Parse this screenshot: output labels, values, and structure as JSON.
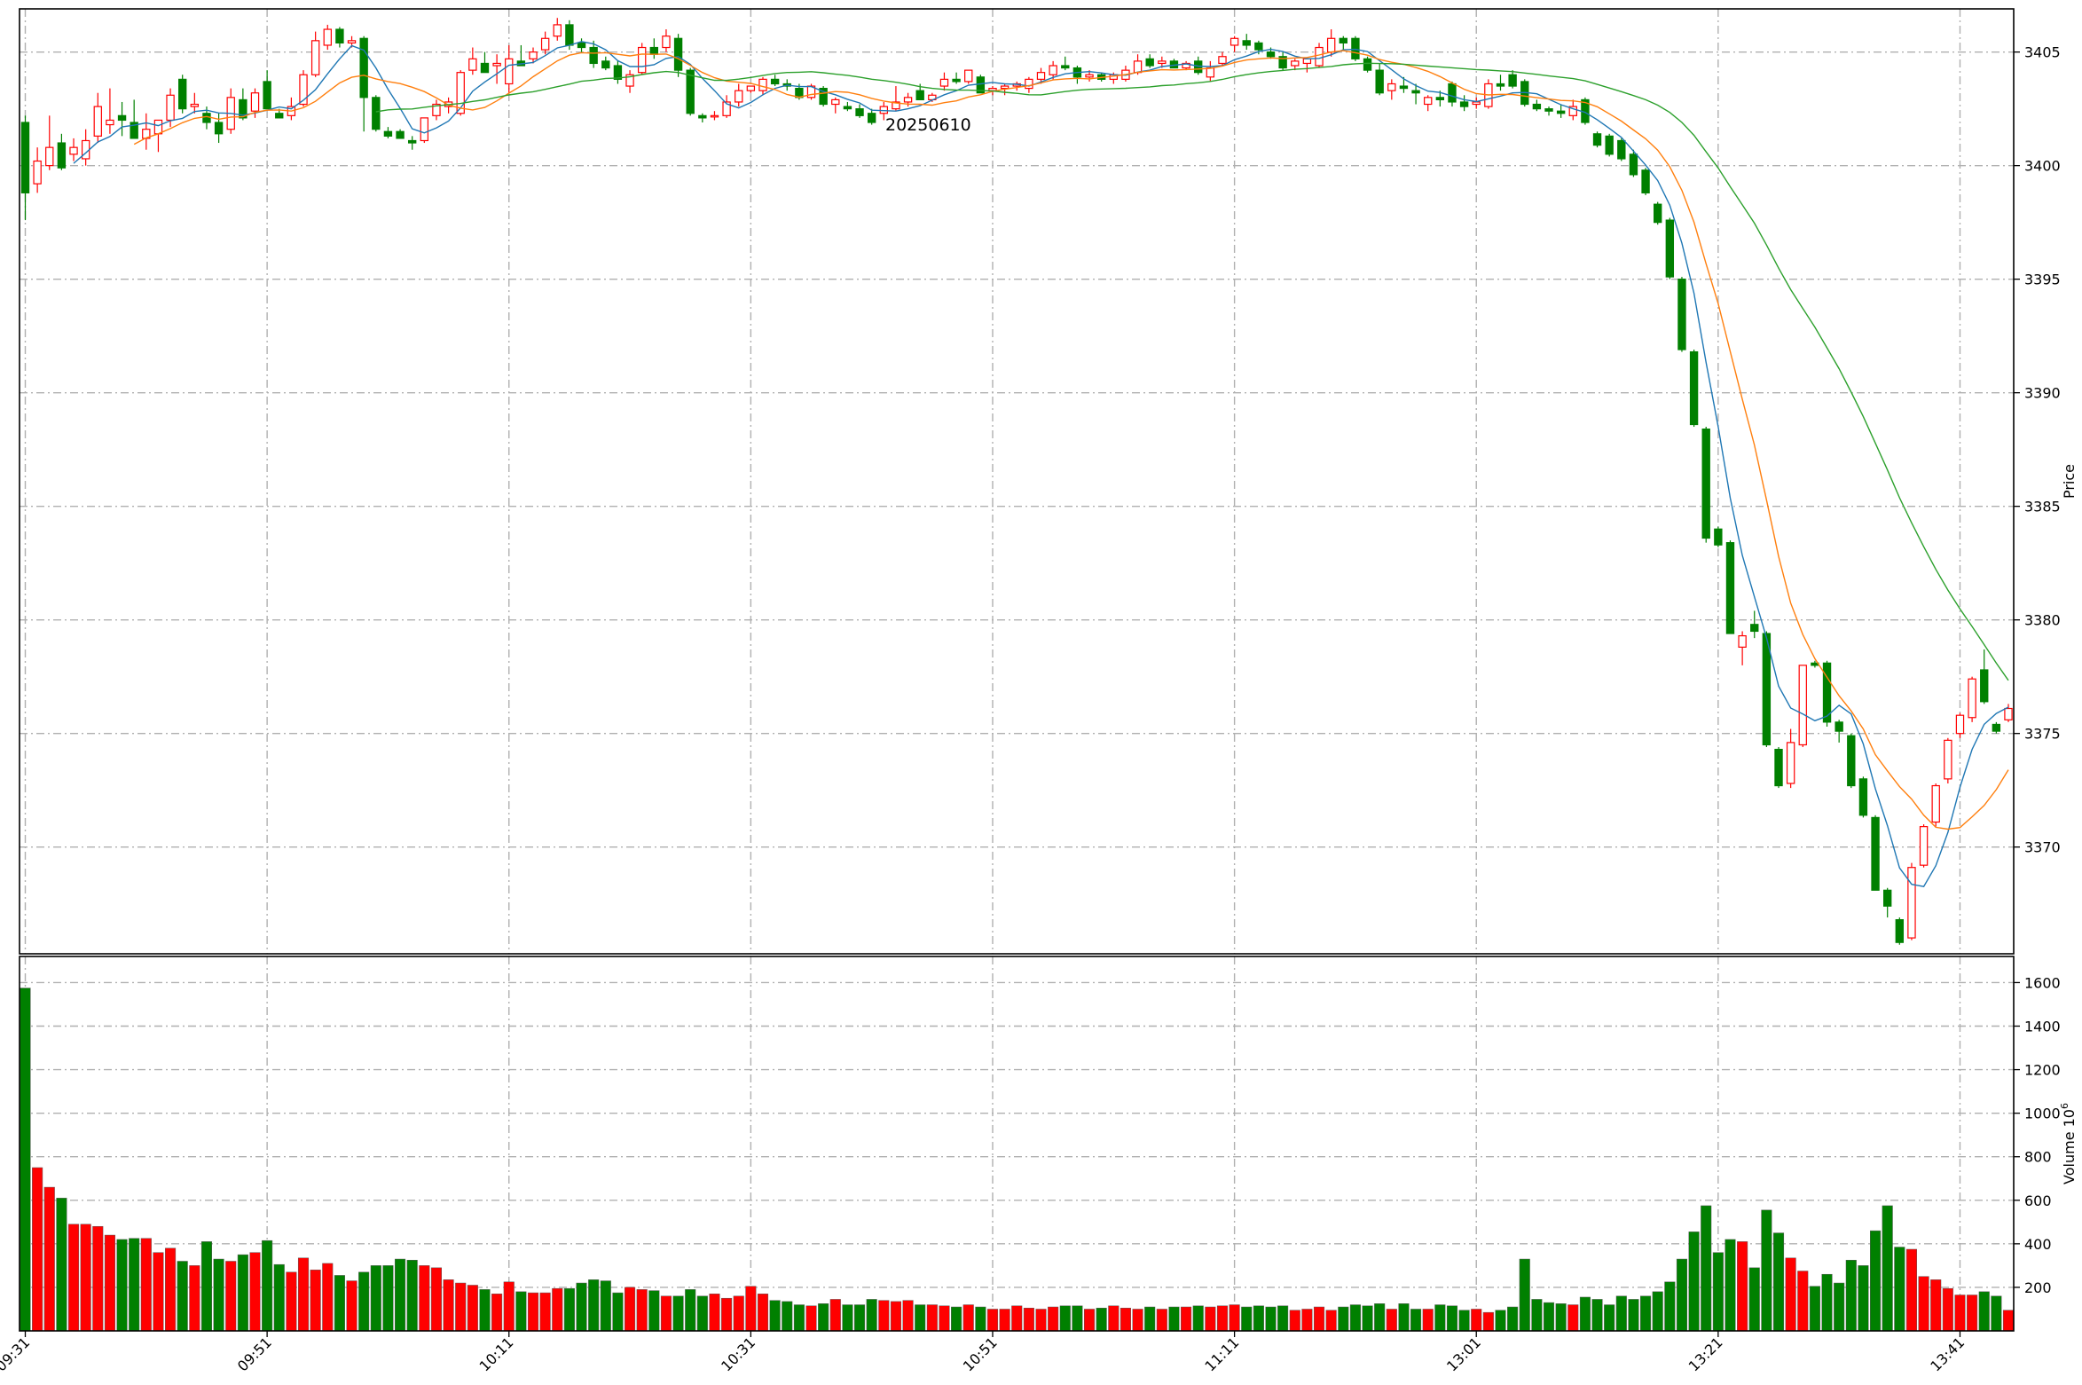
{
  "chart_data": {
    "type": "candlestick",
    "annotation": "20250610",
    "x_tick_labels": [
      "09:31",
      "09:51",
      "10:11",
      "10:31",
      "10:51",
      "11:11",
      "13:01",
      "13:21",
      "13:41"
    ],
    "x_tick_bar_index": [
      0,
      20,
      40,
      60,
      80,
      100,
      120,
      140,
      160
    ],
    "price_panel": {
      "ylabel": "Price",
      "yticks": [
        3370,
        3375,
        3380,
        3385,
        3390,
        3395,
        3400,
        3405
      ],
      "ylim": [
        3365.3,
        3406.9
      ],
      "grid": true,
      "tick_side": "right"
    },
    "volume_panel": {
      "ylabel": "Volume  10",
      "ylabel_exponent": "6",
      "yticks": [
        200,
        400,
        600,
        800,
        1000,
        1200,
        1400,
        1600
      ],
      "ylim": [
        0,
        1720
      ],
      "grid": true,
      "tick_side": "right"
    },
    "colors": {
      "up": "#ff0000",
      "down": "#008000",
      "ma_fast": "#1f77b4",
      "ma_mid": "#ff7f0e",
      "ma_slow": "#2ca02c",
      "grid": "#b0b0b0"
    },
    "ohlc_notes": "per-minute bars: open, high, low, close",
    "ohlc": [
      [
        3401.9,
        3402.2,
        3397.6,
        3398.8
      ],
      [
        3399.2,
        3400.8,
        3398.8,
        3400.2
      ],
      [
        3400.0,
        3402.2,
        3399.8,
        3400.8
      ],
      [
        3401.0,
        3401.4,
        3399.8,
        3399.9
      ],
      [
        3400.5,
        3401.2,
        3400.2,
        3400.8
      ],
      [
        3400.3,
        3401.6,
        3400.0,
        3401.1
      ],
      [
        3401.3,
        3403.2,
        3401.0,
        3402.6
      ],
      [
        3401.8,
        3403.4,
        3401.4,
        3402.0
      ],
      [
        3402.2,
        3402.8,
        3401.3,
        3402.0
      ],
      [
        3401.9,
        3402.9,
        3401.3,
        3401.2
      ],
      [
        3401.2,
        3402.3,
        3400.7,
        3401.6
      ],
      [
        3401.4,
        3402.0,
        3400.6,
        3402.0
      ],
      [
        3402.0,
        3403.4,
        3401.7,
        3403.1
      ],
      [
        3403.8,
        3404.0,
        3402.3,
        3402.5
      ],
      [
        3402.6,
        3403.2,
        3402.3,
        3402.7
      ],
      [
        3402.3,
        3402.6,
        3401.6,
        3401.9
      ],
      [
        3401.9,
        3402.3,
        3401.0,
        3401.4
      ],
      [
        3401.6,
        3403.4,
        3401.4,
        3403.0
      ],
      [
        3402.9,
        3403.4,
        3402.0,
        3402.1
      ],
      [
        3402.4,
        3403.4,
        3402.1,
        3403.2
      ],
      [
        3403.7,
        3404.2,
        3402.6,
        3402.5
      ],
      [
        3402.3,
        3402.5,
        3402.1,
        3402.1
      ],
      [
        3402.2,
        3403.0,
        3402.0,
        3402.6
      ],
      [
        3402.7,
        3404.2,
        3402.6,
        3404.0
      ],
      [
        3404.0,
        3405.9,
        3403.9,
        3405.5
      ],
      [
        3405.3,
        3406.2,
        3405.1,
        3406.0
      ],
      [
        3406.0,
        3406.1,
        3405.2,
        3405.4
      ],
      [
        3405.4,
        3405.7,
        3405.2,
        3405.5
      ],
      [
        3405.6,
        3405.7,
        3401.5,
        3403.0
      ],
      [
        3403.0,
        3403.1,
        3401.5,
        3401.6
      ],
      [
        3401.5,
        3401.7,
        3401.2,
        3401.3
      ],
      [
        3401.5,
        3401.6,
        3401.2,
        3401.2
      ],
      [
        3401.1,
        3401.3,
        3400.7,
        3401.0
      ],
      [
        3401.1,
        3402.1,
        3401.0,
        3402.1
      ],
      [
        3402.2,
        3402.9,
        3402.0,
        3402.7
      ],
      [
        3402.6,
        3403.0,
        3402.3,
        3402.8
      ],
      [
        3402.3,
        3404.2,
        3402.2,
        3404.1
      ],
      [
        3404.2,
        3405.2,
        3404.0,
        3404.7
      ],
      [
        3404.5,
        3405.0,
        3404.1,
        3404.1
      ],
      [
        3404.4,
        3404.9,
        3403.6,
        3404.5
      ],
      [
        3403.6,
        3405.3,
        3403.2,
        3404.7
      ],
      [
        3404.6,
        3405.3,
        3404.4,
        3404.4
      ],
      [
        3404.7,
        3405.2,
        3404.5,
        3405.0
      ],
      [
        3405.1,
        3405.9,
        3404.9,
        3405.6
      ],
      [
        3405.7,
        3406.5,
        3405.5,
        3406.2
      ],
      [
        3406.2,
        3406.4,
        3405.1,
        3405.3
      ],
      [
        3405.4,
        3405.6,
        3405.0,
        3405.2
      ],
      [
        3405.2,
        3405.5,
        3404.3,
        3404.5
      ],
      [
        3404.6,
        3404.8,
        3404.2,
        3404.3
      ],
      [
        3404.4,
        3404.6,
        3403.6,
        3403.8
      ],
      [
        3403.5,
        3404.2,
        3403.2,
        3404.0
      ],
      [
        3404.1,
        3405.4,
        3404.0,
        3405.2
      ],
      [
        3405.2,
        3405.6,
        3404.7,
        3404.9
      ],
      [
        3405.2,
        3406.0,
        3405.0,
        3405.7
      ],
      [
        3405.6,
        3405.8,
        3403.9,
        3404.2
      ],
      [
        3404.2,
        3404.3,
        3402.2,
        3402.3
      ],
      [
        3402.2,
        3402.3,
        3401.9,
        3402.1
      ],
      [
        3402.2,
        3402.4,
        3402.0,
        3402.2
      ],
      [
        3402.2,
        3403.1,
        3402.1,
        3402.8
      ],
      [
        3402.8,
        3403.6,
        3402.6,
        3403.3
      ],
      [
        3403.3,
        3403.5,
        3403.2,
        3403.5
      ],
      [
        3403.3,
        3403.9,
        3403.1,
        3403.8
      ],
      [
        3403.8,
        3404.0,
        3403.5,
        3403.6
      ],
      [
        3403.6,
        3403.8,
        3403.3,
        3403.5
      ],
      [
        3403.4,
        3403.6,
        3402.9,
        3403.0
      ],
      [
        3403.0,
        3403.6,
        3402.9,
        3403.5
      ],
      [
        3403.4,
        3403.5,
        3402.6,
        3402.7
      ],
      [
        3402.7,
        3403.0,
        3402.3,
        3402.9
      ],
      [
        3402.6,
        3402.8,
        3402.4,
        3402.5
      ],
      [
        3402.5,
        3402.7,
        3402.1,
        3402.2
      ],
      [
        3402.3,
        3402.5,
        3401.8,
        3401.9
      ],
      [
        3402.3,
        3402.8,
        3402.0,
        3402.6
      ],
      [
        3402.5,
        3403.5,
        3402.4,
        3402.8
      ],
      [
        3402.8,
        3403.2,
        3402.6,
        3403.0
      ],
      [
        3403.3,
        3403.6,
        3402.9,
        3402.9
      ],
      [
        3402.9,
        3403.2,
        3402.8,
        3403.1
      ],
      [
        3403.5,
        3404.1,
        3403.3,
        3403.8
      ],
      [
        3403.8,
        3404.1,
        3403.6,
        3403.7
      ],
      [
        3403.7,
        3404.2,
        3403.6,
        3404.2
      ],
      [
        3403.9,
        3404.0,
        3403.2,
        3403.2
      ],
      [
        3403.3,
        3403.5,
        3403.1,
        3403.4
      ],
      [
        3403.4,
        3403.6,
        3403.1,
        3403.5
      ],
      [
        3403.5,
        3403.7,
        3403.3,
        3403.6
      ],
      [
        3403.4,
        3403.9,
        3403.2,
        3403.8
      ],
      [
        3403.8,
        3404.3,
        3403.6,
        3404.1
      ],
      [
        3404.0,
        3404.6,
        3403.8,
        3404.4
      ],
      [
        3404.4,
        3404.8,
        3404.2,
        3404.3
      ],
      [
        3404.3,
        3404.4,
        3403.6,
        3403.9
      ],
      [
        3403.9,
        3404.2,
        3403.7,
        3404.0
      ],
      [
        3404.0,
        3404.1,
        3403.7,
        3403.8
      ],
      [
        3403.8,
        3404.1,
        3403.6,
        3404.0
      ],
      [
        3403.8,
        3404.4,
        3403.7,
        3404.2
      ],
      [
        3404.1,
        3404.9,
        3404.0,
        3404.6
      ],
      [
        3404.7,
        3404.9,
        3404.3,
        3404.4
      ],
      [
        3404.5,
        3404.8,
        3404.3,
        3404.6
      ],
      [
        3404.6,
        3404.7,
        3404.3,
        3404.3
      ],
      [
        3404.3,
        3404.6,
        3404.2,
        3404.5
      ],
      [
        3404.6,
        3404.8,
        3404.0,
        3404.1
      ],
      [
        3403.9,
        3404.6,
        3403.7,
        3404.3
      ],
      [
        3404.5,
        3405.0,
        3404.4,
        3404.8
      ],
      [
        3405.3,
        3405.7,
        3405.0,
        3405.6
      ],
      [
        3405.5,
        3405.8,
        3405.1,
        3405.3
      ],
      [
        3405.4,
        3405.5,
        3404.9,
        3405.1
      ],
      [
        3405.0,
        3405.2,
        3404.7,
        3404.8
      ],
      [
        3404.8,
        3405.0,
        3404.2,
        3404.3
      ],
      [
        3404.4,
        3404.7,
        3404.2,
        3404.6
      ],
      [
        3404.5,
        3404.7,
        3404.1,
        3404.7
      ],
      [
        3404.4,
        3405.4,
        3404.3,
        3405.2
      ],
      [
        3405.0,
        3406.0,
        3404.8,
        3405.6
      ],
      [
        3405.6,
        3405.7,
        3405.1,
        3405.4
      ],
      [
        3405.6,
        3405.7,
        3404.6,
        3404.7
      ],
      [
        3404.7,
        3404.8,
        3404.1,
        3404.2
      ],
      [
        3404.2,
        3404.5,
        3403.1,
        3403.2
      ],
      [
        3403.3,
        3403.8,
        3402.9,
        3403.6
      ],
      [
        3403.5,
        3403.9,
        3403.2,
        3403.4
      ],
      [
        3403.3,
        3403.6,
        3402.7,
        3403.2
      ],
      [
        3402.7,
        3403.1,
        3402.4,
        3403.0
      ],
      [
        3403.0,
        3403.3,
        3402.6,
        3402.9
      ],
      [
        3403.6,
        3403.7,
        3402.6,
        3402.8
      ],
      [
        3402.8,
        3403.1,
        3402.4,
        3402.6
      ],
      [
        3402.7,
        3403.0,
        3402.5,
        3402.8
      ],
      [
        3402.6,
        3403.8,
        3402.5,
        3403.6
      ],
      [
        3403.6,
        3404.0,
        3403.3,
        3403.5
      ],
      [
        3404.0,
        3404.2,
        3403.4,
        3403.5
      ],
      [
        3403.7,
        3403.8,
        3402.6,
        3402.7
      ],
      [
        3402.7,
        3402.9,
        3402.4,
        3402.5
      ],
      [
        3402.5,
        3402.6,
        3402.2,
        3402.4
      ],
      [
        3402.4,
        3402.7,
        3402.1,
        3402.3
      ],
      [
        3402.2,
        3402.9,
        3402.0,
        3402.6
      ],
      [
        3402.9,
        3403.0,
        3401.8,
        3401.9
      ],
      [
        3401.4,
        3401.5,
        3400.8,
        3400.9
      ],
      [
        3401.3,
        3401.4,
        3400.4,
        3400.5
      ],
      [
        3401.1,
        3401.2,
        3400.2,
        3400.3
      ],
      [
        3400.5,
        3400.7,
        3399.5,
        3399.6
      ],
      [
        3399.8,
        3399.9,
        3398.7,
        3398.8
      ],
      [
        3398.3,
        3398.4,
        3397.4,
        3397.5
      ],
      [
        3397.6,
        3397.7,
        3395.0,
        3395.1
      ],
      [
        3395.0,
        3395.1,
        3391.8,
        3391.9
      ],
      [
        3391.8,
        3391.9,
        3388.5,
        3388.6
      ],
      [
        3388.4,
        3388.5,
        3383.4,
        3383.6
      ],
      [
        3384.0,
        3384.1,
        3383.2,
        3383.3
      ],
      [
        3383.4,
        3383.5,
        3379.4,
        3379.4
      ],
      [
        3378.8,
        3379.5,
        3378.0,
        3379.3
      ],
      [
        3379.8,
        3380.4,
        3379.2,
        3379.5
      ],
      [
        3379.4,
        3379.5,
        3374.4,
        3374.5
      ],
      [
        3374.3,
        3374.4,
        3372.6,
        3372.7
      ],
      [
        3372.8,
        3375.2,
        3372.6,
        3374.6
      ],
      [
        3374.5,
        3378.0,
        3374.4,
        3378.0
      ],
      [
        3378.1,
        3378.2,
        3377.9,
        3378.0
      ],
      [
        3378.1,
        3378.2,
        3375.3,
        3375.5
      ],
      [
        3375.5,
        3375.6,
        3374.6,
        3375.1
      ],
      [
        3374.9,
        3375.0,
        3372.6,
        3372.7
      ],
      [
        3373.0,
        3373.1,
        3371.3,
        3371.4
      ],
      [
        3371.3,
        3371.4,
        3368.1,
        3368.1
      ],
      [
        3368.1,
        3368.2,
        3366.9,
        3367.4
      ],
      [
        3366.8,
        3366.9,
        3365.7,
        3365.8
      ],
      [
        3366.0,
        3369.3,
        3365.9,
        3369.1
      ],
      [
        3369.2,
        3371.0,
        3369.1,
        3370.9
      ],
      [
        3371.1,
        3372.8,
        3370.9,
        3372.7
      ],
      [
        3373.0,
        3374.8,
        3372.8,
        3374.7
      ],
      [
        3375.0,
        3375.9,
        3374.8,
        3375.8
      ],
      [
        3375.7,
        3377.5,
        3375.5,
        3377.4
      ],
      [
        3377.8,
        3378.7,
        3376.3,
        3376.4
      ],
      [
        3375.4,
        3375.5,
        3375.0,
        3375.1
      ],
      [
        3375.6,
        3376.3,
        3375.5,
        3376.1
      ]
    ],
    "volume_series": [
      1575,
      750,
      660,
      610,
      490,
      490,
      480,
      440,
      420,
      425,
      425,
      360,
      380,
      320,
      300,
      410,
      330,
      320,
      350,
      360,
      415,
      305,
      270,
      335,
      280,
      310,
      255,
      230,
      270,
      300,
      300,
      330,
      325,
      300,
      290,
      235,
      220,
      210,
      190,
      170,
      225,
      180,
      175,
      175,
      195,
      195,
      220,
      235,
      230,
      175,
      200,
      190,
      185,
      160,
      160,
      190,
      160,
      170,
      150,
      160,
      205,
      170,
      140,
      135,
      120,
      115,
      125,
      145,
      120,
      120,
      145,
      140,
      135,
      140,
      120,
      120,
      115,
      110,
      120,
      110,
      100,
      100,
      115,
      105,
      100,
      110,
      115,
      115,
      100,
      105,
      115,
      105,
      100,
      110,
      100,
      110,
      110,
      115,
      110,
      115,
      120,
      110,
      115,
      110,
      115,
      95,
      100,
      110,
      95,
      110,
      120,
      115,
      125,
      100,
      125,
      100,
      100,
      120,
      115,
      95,
      100,
      85,
      95,
      110,
      330,
      145,
      130,
      125,
      120,
      155,
      145,
      120,
      160,
      145,
      160,
      180,
      225,
      330,
      455,
      575,
      360,
      420,
      410,
      290,
      555,
      450,
      335,
      275,
      205,
      260,
      220,
      325,
      300,
      460,
      575,
      385,
      375,
      250,
      235,
      195,
      165,
      165,
      180,
      160,
      95
    ]
  }
}
